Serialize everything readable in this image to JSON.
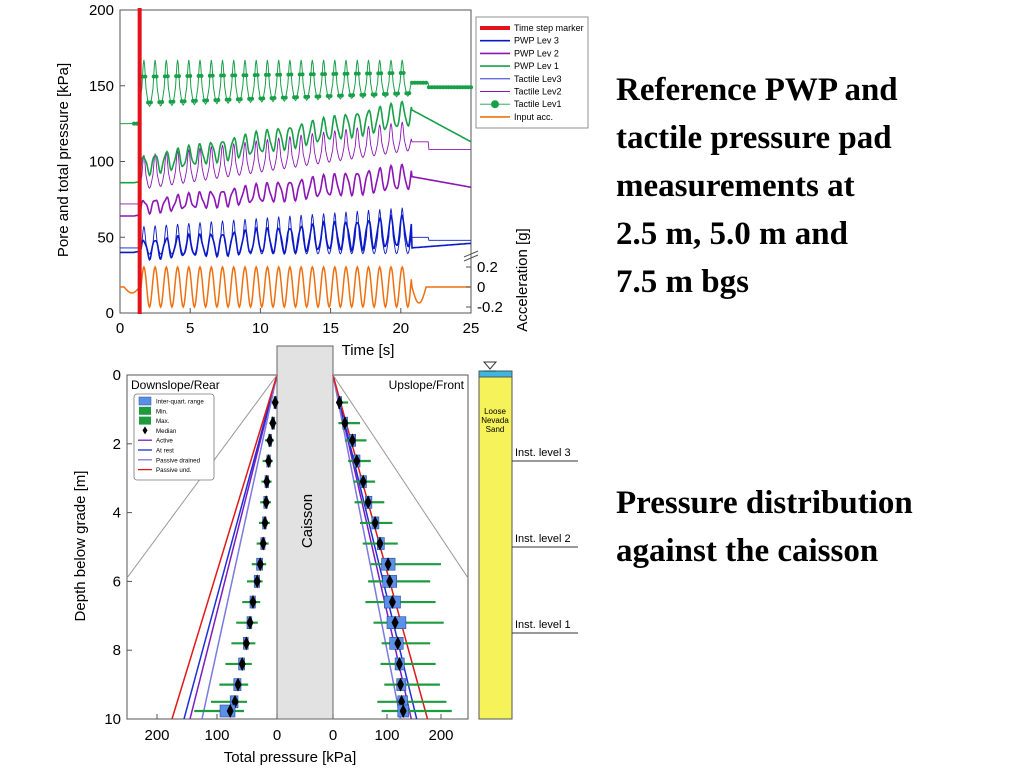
{
  "captions": {
    "top": [
      "Reference PWP and",
      "tactile pressure pad",
      "measurements at",
      "2.5 m, 5.0 m and",
      "7.5 m bgs"
    ],
    "bottom": [
      "Pressure distribution",
      "against the caisson"
    ]
  },
  "colors": {
    "marker": "#e3121b",
    "lev3": "#0a19c8",
    "lev2": "#8c16b5",
    "lev1": "#18a048",
    "acc": "#f07010",
    "box": "#5b8fe8",
    "whisker": "#1f9b3f",
    "caisson": "#e2e2e2",
    "soil": "#f6f25a",
    "water": "#3cb6e2",
    "active": "#7a1cc0",
    "atrest": "#1f2fd6",
    "pdrained": "#7a7ae0",
    "pund": "#e11818"
  },
  "chart_data": [
    {
      "type": "line",
      "xlabel": "Time [s]",
      "ylabel": "Pore and total pressure [kPa]",
      "ylabel2": "Acceleration [g]",
      "xlim": [
        0,
        25
      ],
      "ylim": [
        0,
        200
      ],
      "xticks": [
        "0",
        "5",
        "10",
        "15",
        "20",
        "25"
      ],
      "yticks": [
        "0",
        "50",
        "100",
        "150",
        "200"
      ],
      "y2ticks": [
        "0.2",
        "0",
        "-0.2"
      ],
      "grid": false,
      "legend_position": "right",
      "time_marker_x": 1.4,
      "shaking": {
        "start": 1.5,
        "end": 20.8,
        "period": 0.8
      },
      "series": [
        {
          "name": "Time step marker",
          "kind": "marker",
          "color": "#e3121b"
        },
        {
          "name": "PWP Lev 3",
          "color": "#0a19c8",
          "kind": "pwp",
          "pre": 40,
          "base_start": 42,
          "base_end": 54,
          "base_post": 43,
          "amp_start": 6,
          "amp_end": 10,
          "end_value": 46
        },
        {
          "name": "PWP Lev 2",
          "color": "#8c16b5",
          "kind": "pwp",
          "pre": 64,
          "base_start": 70,
          "base_end": 90,
          "base_post": 90,
          "amp_start": 4,
          "amp_end": 8,
          "end_value": 83
        },
        {
          "name": "PWP Lev 1",
          "color": "#18a048",
          "kind": "pwp",
          "pre": 86,
          "base_start": 97,
          "base_end": 132,
          "base_post": 134,
          "amp_start": 6,
          "amp_end": 8,
          "end_value": 113
        },
        {
          "name": "Tactile Lev3",
          "color": "#0a19c8",
          "kind": "tactile",
          "pre": 43,
          "base_start": 44,
          "base_end": 48,
          "amp_start": 13,
          "amp_end": 22,
          "post": 50,
          "end_value": 48
        },
        {
          "name": "Tactile Lev2",
          "color": "#8c16b5",
          "kind": "tactile",
          "pre": 72,
          "base_start": 88,
          "base_end": 113,
          "amp_start": 16,
          "amp_end": 14,
          "post": 113,
          "end_value": 108
        },
        {
          "name": "Tactile Lev1",
          "color": "#18a048",
          "kind": "tactile-dots",
          "pre": 125,
          "base_start": 145,
          "base_end": 150,
          "amp_start": 22,
          "amp_end": 17,
          "post": 152,
          "end_value": 149
        },
        {
          "name": "Input acc.",
          "color": "#f07010",
          "kind": "acc",
          "amplitude_g": 0.2
        }
      ]
    },
    {
      "type": "box",
      "xlabel": "Total pressure [kPa]",
      "ylabel": "Depth below grade [m]",
      "xlim_left": [
        250,
        0
      ],
      "xlim_right": [
        0,
        250
      ],
      "ylim": [
        0,
        10
      ],
      "xticks_left": [
        "200",
        "100",
        "0"
      ],
      "xticks_right": [
        "0",
        "100",
        "200"
      ],
      "yticks": [
        "0",
        "2",
        "4",
        "6",
        "8",
        "10"
      ],
      "grid": false,
      "legend_position": "top-left",
      "panel_left_title": "Downslope/Rear",
      "panel_right_title": "Upslope/Front",
      "caisson_label": "Caisson",
      "legend": [
        "Inter-quart. range",
        "Min.",
        "Max.",
        "Median",
        "Active",
        "At rest",
        "Passive drained",
        "Passive und."
      ],
      "depths": [
        0.8,
        1.4,
        1.9,
        2.5,
        3.1,
        3.7,
        4.3,
        4.9,
        5.5,
        6.0,
        6.6,
        7.2,
        7.8,
        8.4,
        9.0,
        9.5,
        10.0
      ],
      "left_median": [
        3,
        7,
        12,
        14,
        17,
        18,
        20,
        23,
        28,
        33,
        40,
        45,
        51,
        58,
        65,
        70,
        78
      ],
      "left_q1": [
        2,
        5,
        10,
        11,
        14,
        16,
        18,
        20,
        24,
        29,
        36,
        42,
        48,
        54,
        60,
        65,
        70
      ],
      "left_q3": [
        5,
        9,
        14,
        17,
        20,
        22,
        24,
        27,
        34,
        38,
        45,
        50,
        56,
        64,
        72,
        78,
        95
      ],
      "left_min": [
        0,
        3,
        5,
        7,
        9,
        10,
        12,
        14,
        18,
        24,
        28,
        32,
        36,
        42,
        48,
        50,
        55
      ],
      "left_max": [
        7,
        12,
        20,
        24,
        26,
        28,
        30,
        34,
        42,
        50,
        58,
        68,
        76,
        86,
        96,
        110,
        138
      ],
      "right_median": [
        12,
        22,
        36,
        44,
        56,
        65,
        78,
        87,
        102,
        105,
        110,
        115,
        120,
        123,
        125,
        127,
        130
      ],
      "right_q1": [
        10,
        18,
        30,
        38,
        50,
        60,
        72,
        82,
        90,
        92,
        95,
        100,
        105,
        115,
        118,
        120,
        120
      ],
      "right_q3": [
        16,
        27,
        42,
        50,
        62,
        72,
        85,
        95,
        115,
        118,
        125,
        135,
        130,
        132,
        135,
        138,
        140
      ],
      "right_min": [
        6,
        10,
        22,
        28,
        38,
        40,
        50,
        55,
        70,
        65,
        60,
        75,
        90,
        88,
        95,
        82,
        90
      ],
      "right_max": [
        28,
        50,
        62,
        70,
        78,
        95,
        110,
        120,
        200,
        180,
        190,
        205,
        180,
        190,
        198,
        210,
        220
      ],
      "theory_lines": [
        {
          "name": "Active",
          "color": "#7a1cc0",
          "k_per_m": 14.5
        },
        {
          "name": "At rest",
          "color": "#1f2fd6",
          "k_per_m": 15.5
        },
        {
          "name": "Passive drained",
          "color": "#7a7ae0",
          "k_per_m": 12.5
        },
        {
          "name": "Passive und.",
          "color": "#e11818",
          "k_per_m": 17.5
        }
      ],
      "soil_column": {
        "label": "Loose Nevada Sand",
        "instruments": [
          {
            "label": "Inst. level 3",
            "depth": 2.5
          },
          {
            "label": "Inst. level 2",
            "depth": 5.0
          },
          {
            "label": "Inst. level 1",
            "depth": 7.5
          }
        ]
      }
    }
  ]
}
